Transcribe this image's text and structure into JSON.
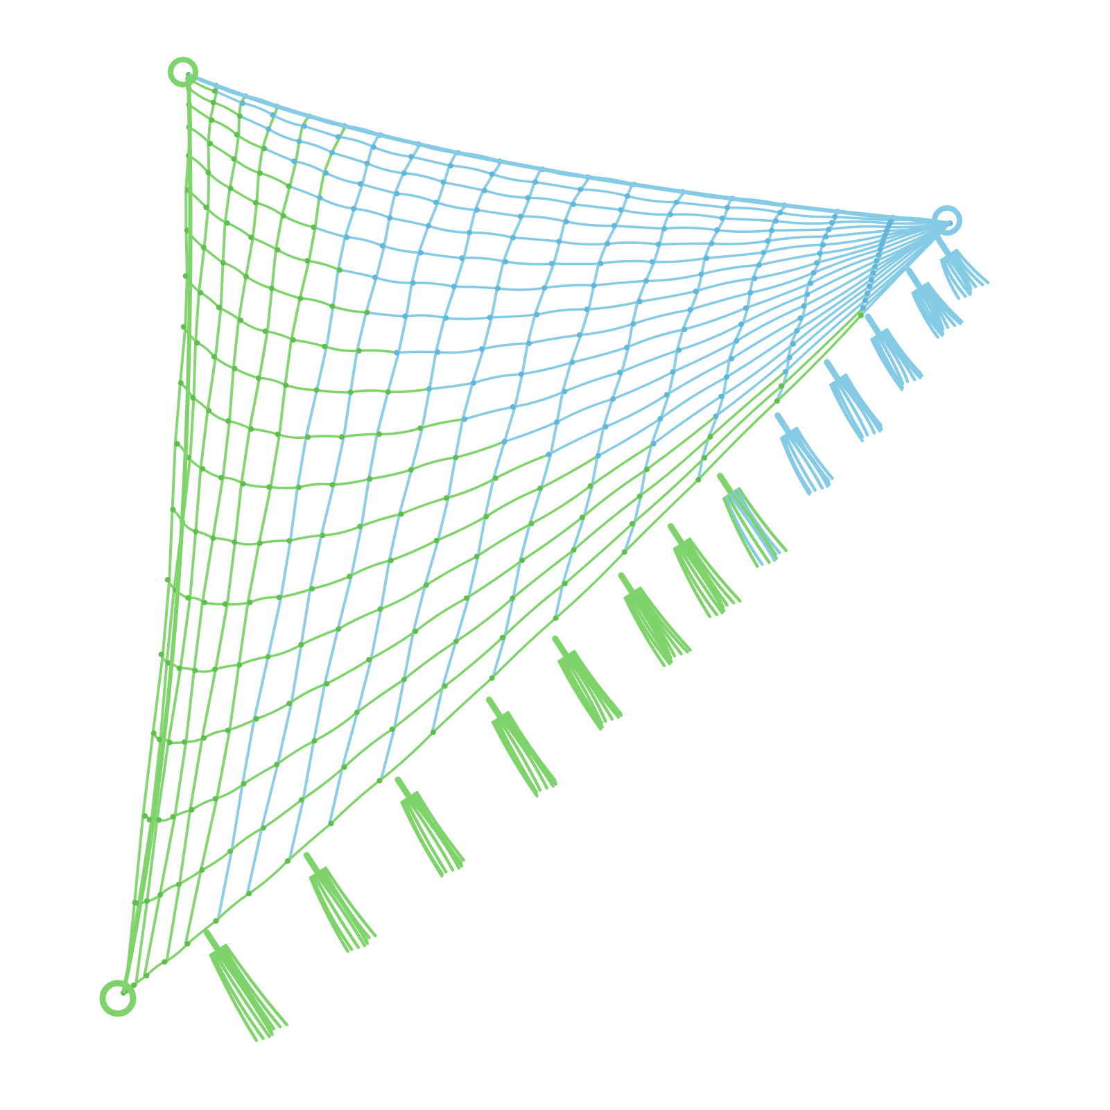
{
  "image": {
    "subject": "macrame-net",
    "background_color": "#ffffff",
    "colors": {
      "green": "#7ed36a",
      "green_dark": "#5fbf4e",
      "blue": "#86cbe6",
      "blue_dark": "#62b6da"
    },
    "hanging_rings": 3,
    "tassels": {
      "green": 7,
      "blue": 5,
      "mixed": 1
    }
  }
}
